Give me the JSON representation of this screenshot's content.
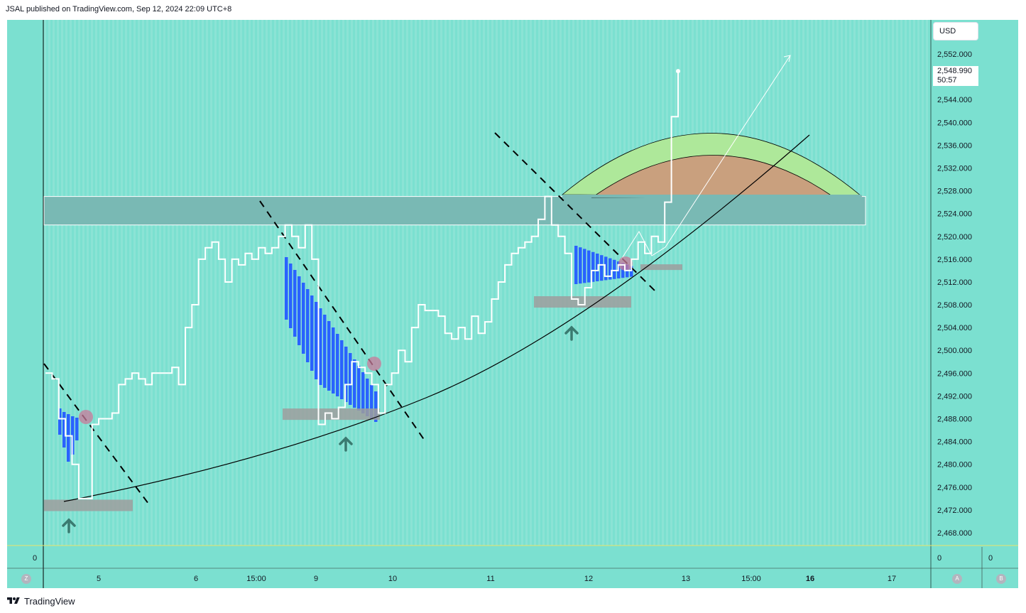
{
  "header": {
    "published": "JSAL published on TradingView.com, Sep 12, 2024 22:09 UTC+8"
  },
  "footer": {
    "brand": "TradingView"
  },
  "colors": {
    "background": "#7be0d0",
    "line": "#ffffff",
    "zone": "#79b9b4",
    "volume_bar": "#2962ff",
    "support_box": "#9e9e9e",
    "arrow": "#3a7a70",
    "highlight": "#c97a9a",
    "arc_outer": "#aee89a",
    "arc_inner": "#c9a07e"
  },
  "price_scale": {
    "currency": "USD",
    "ticks": [
      "2,552.000",
      "2,548.000",
      "2,544.000",
      "2,540.000",
      "2,536.000",
      "2,532.000",
      "2,528.000",
      "2,524.000",
      "2,520.000",
      "2,516.000",
      "2,512.000",
      "2,508.000",
      "2,504.000",
      "2,500.000",
      "2,496.000",
      "2,492.000",
      "2,488.000",
      "2,484.000",
      "2,480.000",
      "2,476.000",
      "2,472.000",
      "2,468.000"
    ],
    "last_price": "2,548.990",
    "countdown": "50:57"
  },
  "time_scale": {
    "ticks": [
      "5",
      "6",
      "15:00",
      "9",
      "10",
      "11",
      "12",
      "13",
      "15:00",
      "16",
      "17"
    ]
  },
  "pane": {
    "left_value": "0",
    "right_value": "0",
    "far_right_value": "0"
  },
  "buttons": {
    "z": "Z",
    "a": "A",
    "b": "B"
  },
  "chart_data": {
    "type": "line",
    "title": "",
    "ylim": [
      2466,
      2556
    ],
    "x_ticks": [
      "5",
      "6",
      "15:00",
      "9",
      "10",
      "11",
      "12",
      "13",
      "15:00",
      "16",
      "17"
    ],
    "series": [
      {
        "values": [
          2496,
          2495,
          2488,
          2485,
          2480,
          2474,
          2474,
          2487,
          2488,
          2488,
          2489,
          2494,
          2495,
          2496,
          2495,
          2494,
          2496,
          2496,
          2496,
          2497,
          2494,
          2504,
          2508,
          2516,
          2518,
          2519,
          2516,
          2512,
          2516,
          2515,
          2517,
          2516,
          2518,
          2517,
          2518,
          2520,
          2522,
          2520,
          2518,
          2522,
          2516,
          2487,
          2489,
          2488,
          2490,
          2494,
          2498,
          2497,
          2496,
          2494,
          2489,
          2494,
          2496,
          2500,
          2498,
          2504,
          2508,
          2507,
          2507,
          2506,
          2503,
          2502,
          2504,
          2502,
          2506,
          2503,
          2505,
          2509,
          2512,
          2515,
          2517,
          2518,
          2519,
          2520,
          2523,
          2527,
          2522,
          2520,
          2517,
          2509,
          2508,
          2511,
          2514,
          2515,
          2513,
          2514,
          2515,
          2514,
          2516,
          2519,
          2517,
          2520,
          2519,
          2526,
          2541,
          2549
        ]
      }
    ],
    "annotations": {
      "resistance_zone": [
        2522,
        2527
      ],
      "support_boxes": [
        [
          2471.8,
          2473.8
        ],
        [
          2487.8,
          2489.8
        ],
        [
          2507.5,
          2509.5
        ],
        [
          2514.1,
          2515.1
        ]
      ]
    }
  }
}
